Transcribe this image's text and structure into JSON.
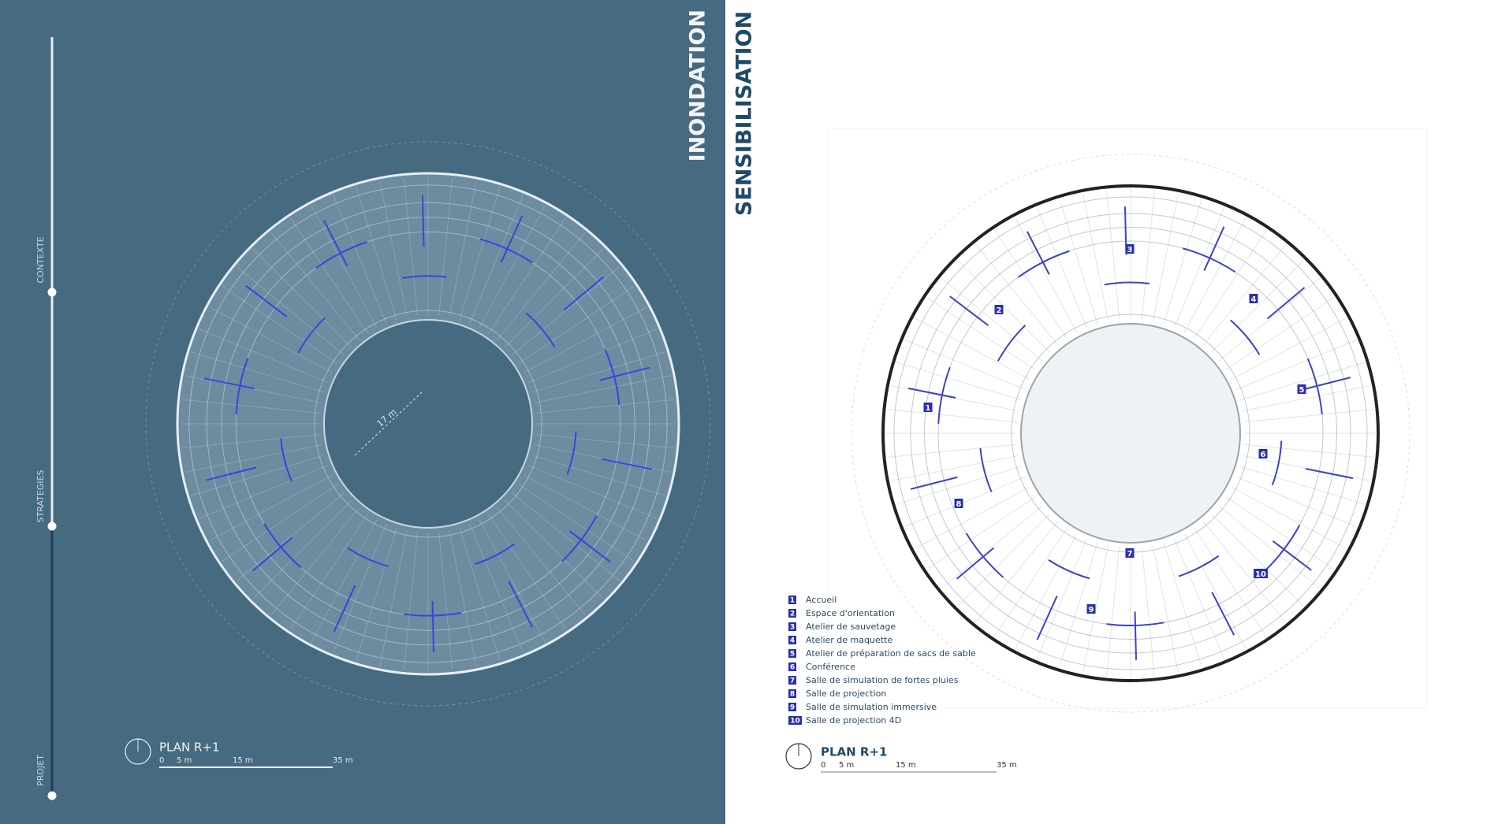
{
  "nav": {
    "items": [
      "CONTEXTE",
      "STRATEGIES",
      "PROJET"
    ]
  },
  "left_panel": {
    "title": "INONDATION",
    "dimension": "17 m",
    "plan": {
      "title": "PLAN R+1",
      "scale": [
        "0",
        "5 m",
        "15 m",
        "35 m"
      ]
    }
  },
  "right_panel": {
    "title": "SENSIBILISATION",
    "rooms": [
      {
        "number": "1",
        "label": "Accueil"
      },
      {
        "number": "2",
        "label": "Espace d'orientation"
      },
      {
        "number": "3",
        "label": "Atelier de sauvetage"
      },
      {
        "number": "4",
        "label": "Atelier de maquette"
      },
      {
        "number": "5",
        "label": "Atelier de préparation de sacs de sable"
      },
      {
        "number": "6",
        "label": "Conférence"
      },
      {
        "number": "7",
        "label": "Salle de simulation de fortes pluies"
      },
      {
        "number": "8",
        "label": "Salle de projection"
      },
      {
        "number": "9",
        "label": "Salle de simulation immersive"
      },
      {
        "number": "10",
        "label": "Salle de projection 4D"
      }
    ],
    "plan": {
      "title": "PLAN R+1",
      "scale": [
        "0",
        "5 m",
        "15 m",
        "35 m"
      ]
    }
  }
}
